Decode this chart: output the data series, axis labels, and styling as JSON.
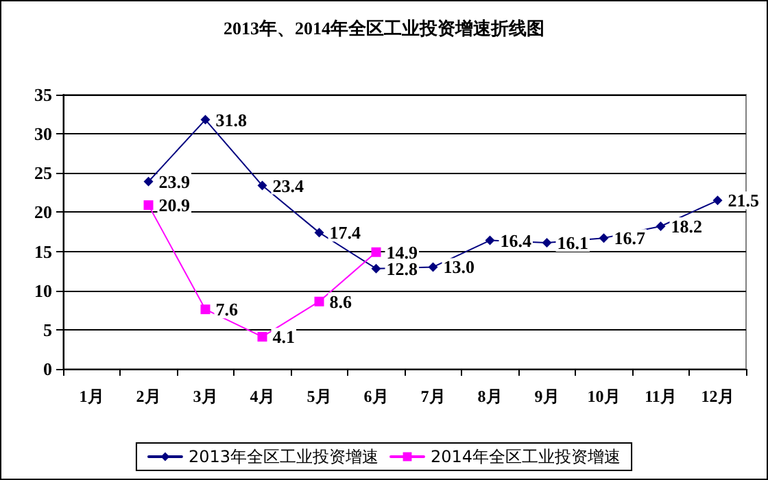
{
  "chart_data": {
    "type": "line",
    "title": "2013年、2014年全区工业投资增速折线图",
    "categories": [
      "1月",
      "2月",
      "3月",
      "4月",
      "5月",
      "6月",
      "7月",
      "8月",
      "9月",
      "10月",
      "11月",
      "12月"
    ],
    "series": [
      {
        "name": "2013年全区工业投资增速",
        "color": "#000080",
        "marker": "diamond",
        "values": [
          null,
          23.9,
          31.8,
          23.4,
          17.4,
          12.8,
          13.0,
          16.4,
          16.1,
          16.7,
          18.2,
          21.5
        ],
        "value_labels": [
          null,
          "23.9",
          "31.8",
          "23.4",
          "17.4",
          "12.8",
          "13.0",
          "16.4",
          "16.1",
          "16.7",
          "18.2",
          "21.5"
        ]
      },
      {
        "name": "2014年全区工业投资增速",
        "color": "#ff00ff",
        "marker": "square",
        "values": [
          null,
          20.9,
          7.6,
          4.1,
          8.6,
          14.9,
          null,
          null,
          null,
          null,
          null,
          null
        ],
        "value_labels": [
          null,
          "20.9",
          "7.6",
          "4.1",
          "8.6",
          "14.9",
          null,
          null,
          null,
          null,
          null,
          null
        ]
      }
    ],
    "ylim": [
      0,
      35
    ],
    "yticks": [
      0,
      5,
      10,
      15,
      20,
      25,
      30,
      35
    ],
    "grid": "y",
    "legend": "bottom",
    "line_style": "solid"
  }
}
